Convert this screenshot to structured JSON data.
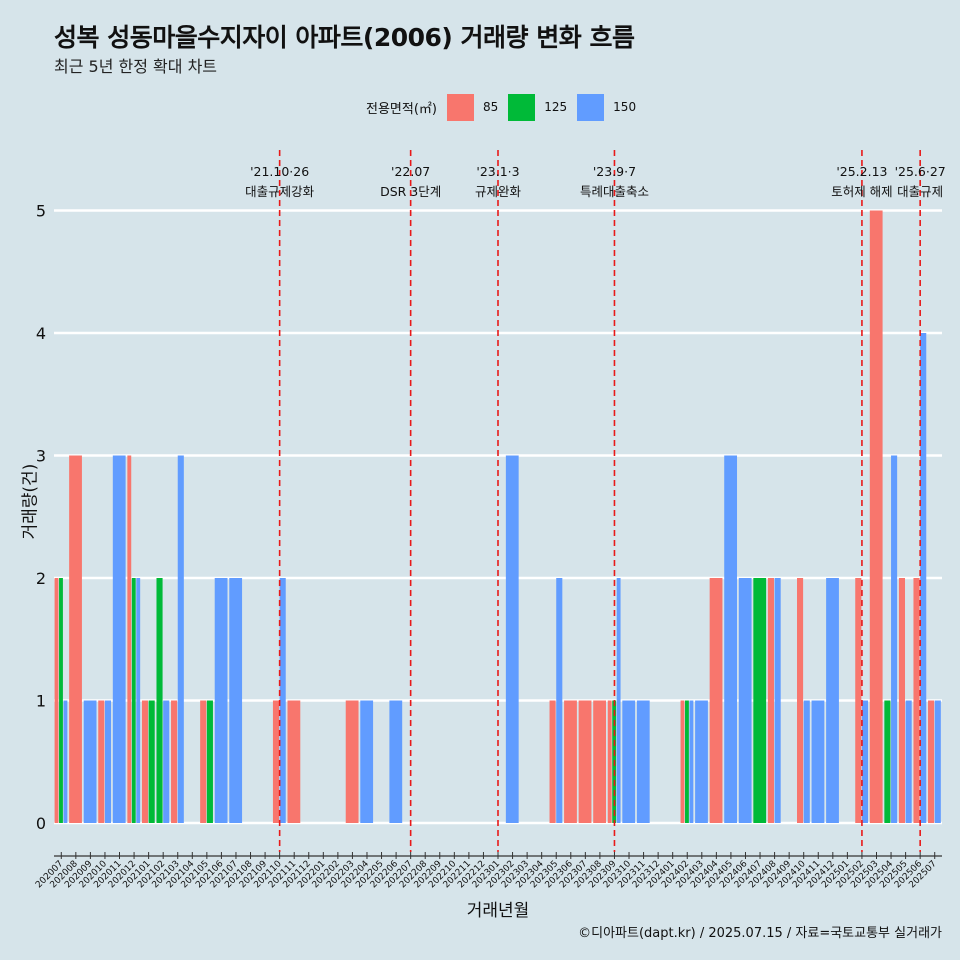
{
  "header": {
    "title": "성복 성동마을수지자이 아파트(2006) 거래량 변화 흐름",
    "subtitle": "최근 5년 한정 확대 차트"
  },
  "legend": {
    "title": "전용면적(㎡)",
    "items": [
      {
        "label": "85",
        "color": "#f8766d"
      },
      {
        "label": "125",
        "color": "#00ba38"
      },
      {
        "label": "150",
        "color": "#619cff"
      }
    ]
  },
  "caption": "©디아파트(dapt.kr) / 2025.07.15 / 자료=국토교통부 실거래가",
  "chart_data": {
    "type": "bar",
    "xlabel": "거래년월",
    "ylabel": "거래량(건)",
    "ylim": [
      0,
      5.2
    ],
    "yticks": [
      0,
      1,
      2,
      3,
      4,
      5
    ],
    "grid": true,
    "legend_position": "top",
    "categories": [
      "202007",
      "202008",
      "202009",
      "202010",
      "202011",
      "202012",
      "202101",
      "202102",
      "202103",
      "202104",
      "202105",
      "202106",
      "202107",
      "202108",
      "202109",
      "202110",
      "202111",
      "202112",
      "202201",
      "202202",
      "202203",
      "202204",
      "202205",
      "202206",
      "202207",
      "202208",
      "202209",
      "202210",
      "202211",
      "202212",
      "202301",
      "202302",
      "202303",
      "202304",
      "202305",
      "202306",
      "202307",
      "202308",
      "202309",
      "202310",
      "202311",
      "202312",
      "202401",
      "202402",
      "202403",
      "202404",
      "202405",
      "202406",
      "202407",
      "202408",
      "202409",
      "202410",
      "202411",
      "202412",
      "202501",
      "202502",
      "202503",
      "202504",
      "202505",
      "202506",
      "202507"
    ],
    "series": [
      {
        "name": "85",
        "color": "#f8766d",
        "values": [
          2,
          3,
          0,
          1,
          0,
          3,
          1,
          0,
          1,
          0,
          1,
          0,
          0,
          0,
          0,
          1,
          1,
          0,
          0,
          0,
          1,
          0,
          0,
          0,
          0,
          0,
          0,
          0,
          0,
          0,
          0,
          0,
          0,
          0,
          1,
          1,
          1,
          1,
          1,
          0,
          0,
          0,
          0,
          1,
          0,
          2,
          0,
          0,
          0,
          2,
          0,
          2,
          0,
          0,
          0,
          2,
          5,
          0,
          2,
          2,
          1
        ]
      },
      {
        "name": "125",
        "color": "#00ba38",
        "values": [
          2,
          0,
          0,
          0,
          0,
          2,
          1,
          2,
          0,
          0,
          1,
          0,
          0,
          0,
          0,
          0,
          0,
          0,
          0,
          0,
          0,
          0,
          0,
          0,
          0,
          0,
          0,
          0,
          0,
          0,
          0,
          0,
          0,
          0,
          0,
          0,
          0,
          0,
          1,
          0,
          0,
          0,
          0,
          1,
          0,
          0,
          0,
          0,
          2,
          0,
          0,
          0,
          0,
          0,
          0,
          0,
          0,
          1,
          0,
          0,
          0
        ]
      },
      {
        "name": "150",
        "color": "#619cff",
        "values": [
          1,
          0,
          1,
          1,
          3,
          2,
          0,
          1,
          3,
          0,
          0,
          2,
          2,
          0,
          0,
          2,
          0,
          0,
          0,
          0,
          0,
          1,
          0,
          1,
          0,
          0,
          0,
          0,
          0,
          0,
          0,
          3,
          0,
          0,
          2,
          0,
          0,
          0,
          2,
          1,
          1,
          0,
          0,
          1,
          1,
          0,
          3,
          2,
          0,
          2,
          0,
          1,
          1,
          2,
          0,
          1,
          0,
          3,
          1,
          4,
          1
        ]
      }
    ],
    "annotations": [
      {
        "x": "202110",
        "label_top": "'21.10·26",
        "label_bottom": "대출규제강화"
      },
      {
        "x": "202207",
        "label_top": "'22.07",
        "label_bottom": "DSR 3단계"
      },
      {
        "x": "202301",
        "label_top": "'23.1·3",
        "label_bottom": "규제완화"
      },
      {
        "x": "202309",
        "label_top": "'23.9·7",
        "label_bottom": "특례대출축소"
      },
      {
        "x": "202502",
        "label_top": "'25.2.13",
        "label_bottom": "토허제 해제"
      },
      {
        "x": "202506",
        "label_top": "'25.6·27",
        "label_bottom": "대출규제"
      }
    ]
  }
}
